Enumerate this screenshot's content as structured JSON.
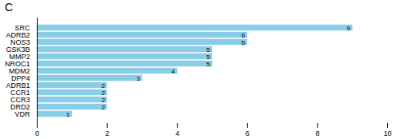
{
  "chart_data": {
    "type": "bar",
    "title": "C",
    "categories": [
      "VDR",
      "DRD2",
      "CCR3",
      "CCR1",
      "ADRB1",
      "DPP4",
      "MDM2",
      "NROC1",
      "MMP2",
      "GSK3B",
      "NOS3",
      "ADRB2",
      "SRC"
    ],
    "values": [
      1,
      2,
      2,
      2,
      2,
      3,
      4,
      5,
      5,
      5,
      6,
      6,
      9
    ],
    "color": "#87CEEB",
    "orientation": "horizontal",
    "xlim": [
      0,
      10
    ],
    "xticks": [
      0,
      2,
      4,
      6,
      8,
      10
    ],
    "grid": false,
    "data_labels": true
  }
}
